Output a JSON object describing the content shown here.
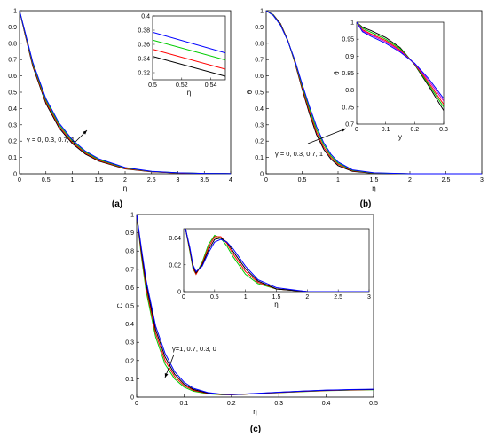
{
  "colors": {
    "black": "#000000",
    "red": "#ff0000",
    "green": "#00cc00",
    "blue": "#0000ff",
    "magenta": "#cc00cc"
  },
  "chart_data": [
    {
      "id": "a",
      "type": "line",
      "caption": "(a)",
      "xlabel": "η",
      "ylabel": "",
      "xlim": [
        0,
        4
      ],
      "ylim": [
        0,
        1
      ],
      "xticks": [
        "0",
        "0.5",
        "1",
        "1.5",
        "2",
        "2.5",
        "3",
        "3.5",
        "4"
      ],
      "yticks": [
        "0",
        "0.1",
        "0.2",
        "0.3",
        "0.4",
        "0.5",
        "0.6",
        "0.7",
        "0.8",
        "0.9",
        "1"
      ],
      "annotation": "γ = 0, 0.3, 0.7, 1",
      "series": [
        {
          "color": "#000000",
          "x": [
            0,
            0.1,
            0.25,
            0.5,
            0.75,
            1,
            1.25,
            1.5,
            2,
            2.5,
            3,
            3.5,
            4
          ],
          "y": [
            1,
            0.86,
            0.66,
            0.43,
            0.28,
            0.185,
            0.12,
            0.078,
            0.03,
            0.012,
            0.005,
            0.002,
            0.001
          ]
        },
        {
          "color": "#ff0000",
          "x": [
            0,
            0.1,
            0.25,
            0.5,
            0.75,
            1,
            1.25,
            1.5,
            2,
            2.5,
            3,
            3.5,
            4
          ],
          "y": [
            1,
            0.865,
            0.668,
            0.44,
            0.29,
            0.192,
            0.126,
            0.082,
            0.032,
            0.013,
            0.005,
            0.002,
            0.001
          ]
        },
        {
          "color": "#00cc00",
          "x": [
            0,
            0.1,
            0.25,
            0.5,
            0.75,
            1,
            1.25,
            1.5,
            2,
            2.5,
            3,
            3.5,
            4
          ],
          "y": [
            1,
            0.87,
            0.676,
            0.45,
            0.3,
            0.2,
            0.132,
            0.087,
            0.035,
            0.014,
            0.006,
            0.002,
            0.001
          ]
        },
        {
          "color": "#0000ff",
          "x": [
            0,
            0.1,
            0.25,
            0.5,
            0.75,
            1,
            1.25,
            1.5,
            2,
            2.5,
            3,
            3.5,
            4
          ],
          "y": [
            1,
            0.875,
            0.684,
            0.46,
            0.31,
            0.208,
            0.138,
            0.092,
            0.038,
            0.015,
            0.006,
            0.002,
            0.001
          ]
        }
      ],
      "inset": {
        "xlabel": "η",
        "ylabel": "",
        "xlim": [
          0.5,
          0.55
        ],
        "ylim": [
          0.31,
          0.4
        ],
        "xticks": [
          "0.5",
          "0.52",
          "0.54"
        ],
        "xtickvals": [
          0.5,
          0.52,
          0.54
        ],
        "yticks": [
          "0.32",
          "0.34",
          "0.36",
          "0.38",
          "0.4"
        ],
        "ytickvals": [
          0.32,
          0.34,
          0.36,
          0.38,
          0.4
        ],
        "series": [
          {
            "color": "#000000",
            "x": [
              0.5,
              0.55
            ],
            "y": [
              0.343,
              0.315
            ]
          },
          {
            "color": "#ff0000",
            "x": [
              0.5,
              0.55
            ],
            "y": [
              0.353,
              0.325
            ]
          },
          {
            "color": "#00cc00",
            "x": [
              0.5,
              0.55
            ],
            "y": [
              0.366,
              0.338
            ]
          },
          {
            "color": "#0000ff",
            "x": [
              0.5,
              0.55
            ],
            "y": [
              0.377,
              0.348
            ]
          }
        ]
      }
    },
    {
      "id": "b",
      "type": "line",
      "caption": "(b)",
      "xlabel": "η",
      "ylabel": "θ",
      "xlim": [
        0,
        3
      ],
      "ylim": [
        0,
        1
      ],
      "xticks": [
        "0",
        "0.5",
        "1",
        "1.5",
        "2",
        "2.5",
        "3"
      ],
      "yticks": [
        "0",
        "0.1",
        "0.2",
        "0.3",
        "0.4",
        "0.5",
        "0.6",
        "0.7",
        "0.8",
        "0.9",
        "1"
      ],
      "annotation": "γ = 0, 0.3, 0.7, 1",
      "series": [
        {
          "color": "#000000",
          "x": [
            0,
            0.1,
            0.2,
            0.3,
            0.4,
            0.5,
            0.6,
            0.7,
            0.8,
            0.9,
            1,
            1.2,
            1.5,
            2,
            2.5,
            3
          ],
          "y": [
            1,
            0.975,
            0.92,
            0.82,
            0.68,
            0.52,
            0.37,
            0.24,
            0.15,
            0.09,
            0.05,
            0.015,
            0.003,
            0,
            0,
            0
          ]
        },
        {
          "color": "#ff0000",
          "x": [
            0,
            0.1,
            0.2,
            0.3,
            0.4,
            0.5,
            0.6,
            0.7,
            0.8,
            0.9,
            1,
            1.2,
            1.5,
            2,
            2.5,
            3
          ],
          "y": [
            1,
            0.973,
            0.915,
            0.818,
            0.685,
            0.53,
            0.385,
            0.255,
            0.163,
            0.1,
            0.058,
            0.018,
            0.004,
            0,
            0,
            0
          ]
        },
        {
          "color": "#00cc00",
          "x": [
            0,
            0.1,
            0.2,
            0.3,
            0.4,
            0.5,
            0.6,
            0.7,
            0.8,
            0.9,
            1,
            1.2,
            1.5,
            2,
            2.5,
            3
          ],
          "y": [
            1,
            0.972,
            0.912,
            0.816,
            0.69,
            0.54,
            0.4,
            0.272,
            0.178,
            0.11,
            0.065,
            0.021,
            0.005,
            0,
            0,
            0
          ]
        },
        {
          "color": "#0000ff",
          "x": [
            0,
            0.1,
            0.2,
            0.3,
            0.4,
            0.5,
            0.6,
            0.7,
            0.8,
            0.9,
            1,
            1.2,
            1.5,
            2,
            2.5,
            3
          ],
          "y": [
            1,
            0.97,
            0.91,
            0.815,
            0.695,
            0.55,
            0.415,
            0.29,
            0.19,
            0.12,
            0.072,
            0.024,
            0.006,
            0,
            0,
            0
          ]
        }
      ],
      "inset": {
        "xlabel": "y",
        "ylabel": "θ",
        "xlim": [
          0,
          0.3
        ],
        "ylim": [
          0.7,
          1
        ],
        "xticks": [
          "0",
          "0.1",
          "0.2",
          "0.3"
        ],
        "xtickvals": [
          0,
          0.1,
          0.2,
          0.3
        ],
        "yticks": [
          "0.7",
          "0.75",
          "0.8",
          "0.85",
          "0.9",
          "0.95",
          "1"
        ],
        "ytickvals": [
          0.7,
          0.75,
          0.8,
          0.85,
          0.9,
          0.95,
          1
        ],
        "series": [
          {
            "color": "#000000",
            "x": [
              0,
              0.02,
              0.05,
              0.1,
              0.15,
              0.2,
              0.25,
              0.3
            ],
            "y": [
              1,
              0.985,
              0.975,
              0.955,
              0.925,
              0.875,
              0.81,
              0.74
            ]
          },
          {
            "color": "#00cc00",
            "x": [
              0,
              0.02,
              0.05,
              0.1,
              0.15,
              0.2,
              0.25,
              0.3
            ],
            "y": [
              1,
              0.982,
              0.97,
              0.95,
              0.922,
              0.876,
              0.815,
              0.75
            ]
          },
          {
            "color": "#ff0000",
            "x": [
              0,
              0.02,
              0.05,
              0.1,
              0.15,
              0.2,
              0.25,
              0.3
            ],
            "y": [
              1,
              0.978,
              0.965,
              0.946,
              0.918,
              0.877,
              0.82,
              0.758
            ]
          },
          {
            "color": "#cc00cc",
            "x": [
              0,
              0.02,
              0.05,
              0.1,
              0.15,
              0.2,
              0.25,
              0.3
            ],
            "y": [
              1,
              0.975,
              0.962,
              0.942,
              0.915,
              0.878,
              0.826,
              0.768
            ]
          },
          {
            "color": "#0000ff",
            "x": [
              0,
              0.02,
              0.05,
              0.1,
              0.15,
              0.2,
              0.25,
              0.3
            ],
            "y": [
              1,
              0.972,
              0.958,
              0.938,
              0.912,
              0.879,
              0.832,
              0.775
            ]
          }
        ]
      }
    },
    {
      "id": "c",
      "type": "line",
      "caption": "(c)",
      "xlabel": "η",
      "ylabel": "C",
      "xlim": [
        0,
        0.5
      ],
      "ylim": [
        0,
        1
      ],
      "xticks": [
        "0",
        "0.1",
        "0.2",
        "0.3",
        "0.4",
        "0.5"
      ],
      "yticks": [
        "0",
        "0.1",
        "0.2",
        "0.3",
        "0.4",
        "0.5",
        "0.6",
        "0.7",
        "0.8",
        "0.9",
        "1"
      ],
      "annotation": "γ=1, 0.7, 0.3, 0",
      "series": [
        {
          "color": "#00cc00",
          "x": [
            0,
            0.01,
            0.02,
            0.04,
            0.06,
            0.08,
            0.1,
            0.12,
            0.15,
            0.18,
            0.2,
            0.22,
            0.25,
            0.3,
            0.35,
            0.4,
            0.45,
            0.5
          ],
          "y": [
            1,
            0.77,
            0.58,
            0.33,
            0.18,
            0.1,
            0.055,
            0.032,
            0.018,
            0.013,
            0.013,
            0.015,
            0.018,
            0.024,
            0.03,
            0.035,
            0.038,
            0.04
          ]
        },
        {
          "color": "#ff0000",
          "x": [
            0,
            0.01,
            0.02,
            0.04,
            0.06,
            0.08,
            0.1,
            0.12,
            0.15,
            0.18,
            0.2,
            0.22,
            0.25,
            0.3,
            0.35,
            0.4,
            0.45,
            0.5
          ],
          "y": [
            1,
            0.785,
            0.6,
            0.35,
            0.2,
            0.113,
            0.063,
            0.037,
            0.02,
            0.014,
            0.013,
            0.015,
            0.018,
            0.025,
            0.031,
            0.036,
            0.039,
            0.041
          ]
        },
        {
          "color": "#000000",
          "x": [
            0,
            0.01,
            0.02,
            0.04,
            0.06,
            0.08,
            0.1,
            0.12,
            0.15,
            0.18,
            0.2,
            0.22,
            0.25,
            0.3,
            0.35,
            0.4,
            0.45,
            0.5
          ],
          "y": [
            1,
            0.8,
            0.62,
            0.37,
            0.22,
            0.126,
            0.072,
            0.042,
            0.022,
            0.015,
            0.014,
            0.015,
            0.019,
            0.026,
            0.032,
            0.037,
            0.04,
            0.042
          ]
        },
        {
          "color": "#0000ff",
          "x": [
            0,
            0.01,
            0.02,
            0.04,
            0.06,
            0.08,
            0.1,
            0.12,
            0.15,
            0.18,
            0.2,
            0.22,
            0.25,
            0.3,
            0.35,
            0.4,
            0.45,
            0.5
          ],
          "y": [
            1,
            0.815,
            0.64,
            0.39,
            0.24,
            0.14,
            0.082,
            0.048,
            0.025,
            0.016,
            0.014,
            0.016,
            0.02,
            0.027,
            0.033,
            0.038,
            0.041,
            0.043
          ]
        }
      ],
      "inset": {
        "xlabel": "η",
        "ylabel": "",
        "xlim": [
          0,
          3
        ],
        "ylim": [
          0,
          0.047
        ],
        "xticks": [
          "0",
          "0.5",
          "1",
          "1.5",
          "2",
          "2.5",
          "3"
        ],
        "xtickvals": [
          0,
          0.5,
          1,
          1.5,
          2,
          2.5,
          3
        ],
        "yticks": [
          "0",
          "0.02",
          "0.04"
        ],
        "ytickvals": [
          0,
          0.02,
          0.04
        ],
        "series": [
          {
            "color": "#00cc00",
            "x": [
              0.03,
              0.1,
              0.15,
              0.2,
              0.3,
              0.4,
              0.5,
              0.6,
              0.7,
              0.8,
              1,
              1.2,
              1.5,
              2,
              2.5,
              3
            ],
            "y": [
              0.047,
              0.03,
              0.017,
              0.013,
              0.022,
              0.035,
              0.042,
              0.04,
              0.034,
              0.026,
              0.013,
              0.006,
              0.002,
              0,
              0,
              0
            ]
          },
          {
            "color": "#ff0000",
            "x": [
              0.03,
              0.1,
              0.15,
              0.2,
              0.3,
              0.4,
              0.5,
              0.6,
              0.7,
              0.8,
              1,
              1.2,
              1.5,
              2,
              2.5,
              3
            ],
            "y": [
              0.047,
              0.031,
              0.018,
              0.013,
              0.021,
              0.033,
              0.041,
              0.041,
              0.036,
              0.028,
              0.015,
              0.007,
              0.002,
              0,
              0,
              0
            ]
          },
          {
            "color": "#000000",
            "x": [
              0.03,
              0.1,
              0.15,
              0.2,
              0.3,
              0.4,
              0.5,
              0.6,
              0.7,
              0.8,
              1,
              1.2,
              1.5,
              2,
              2.5,
              3
            ],
            "y": [
              0.047,
              0.032,
              0.019,
              0.014,
              0.02,
              0.031,
              0.039,
              0.04,
              0.037,
              0.03,
              0.017,
              0.008,
              0.002,
              0,
              0,
              0
            ]
          },
          {
            "color": "#0000ff",
            "x": [
              0.03,
              0.1,
              0.15,
              0.2,
              0.3,
              0.4,
              0.5,
              0.6,
              0.7,
              0.8,
              1,
              1.2,
              1.5,
              2,
              2.5,
              3
            ],
            "y": [
              0.047,
              0.033,
              0.02,
              0.015,
              0.019,
              0.029,
              0.037,
              0.039,
              0.037,
              0.032,
              0.019,
              0.009,
              0.003,
              0,
              0,
              0
            ]
          }
        ]
      }
    }
  ]
}
